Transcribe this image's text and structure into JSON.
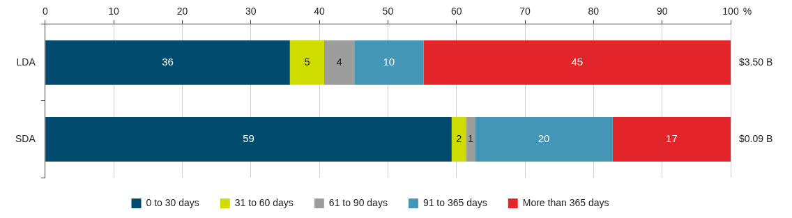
{
  "chart_data": {
    "type": "bar",
    "orientation": "horizontal",
    "stacked": true,
    "data_labels": true,
    "grid": true,
    "legend": "bottom",
    "x_label": "%",
    "categories": [
      "LDA",
      "SDA"
    ],
    "total_labels": [
      "$3.50 B",
      "$0.09 B"
    ],
    "xlim": [
      0,
      100
    ],
    "xticks": [
      0,
      10,
      20,
      30,
      40,
      50,
      60,
      70,
      80,
      90,
      100
    ],
    "series": [
      {
        "name": "0 to 30 days",
        "color": "#004b6e",
        "values": [
          35.7,
          59.3
        ],
        "value_labels": [
          "36",
          "59"
        ]
      },
      {
        "name": "31 to 60 days",
        "color": "#cedc00",
        "values": [
          5.0,
          2.1
        ],
        "value_labels": [
          "5",
          "2"
        ]
      },
      {
        "name": "61 to 90 days",
        "color": "#9d9d9d",
        "values": [
          4.4,
          1.3
        ],
        "value_labels": [
          "4",
          "1"
        ]
      },
      {
        "name": "91 to 365 days",
        "color": "#4396b6",
        "values": [
          10.1,
          20.1
        ],
        "value_labels": [
          "10",
          "20"
        ]
      },
      {
        "name": "More than 365 days",
        "color": "#e1252b",
        "values": [
          44.8,
          17.2
        ],
        "value_labels": [
          "45",
          "17"
        ]
      }
    ]
  }
}
